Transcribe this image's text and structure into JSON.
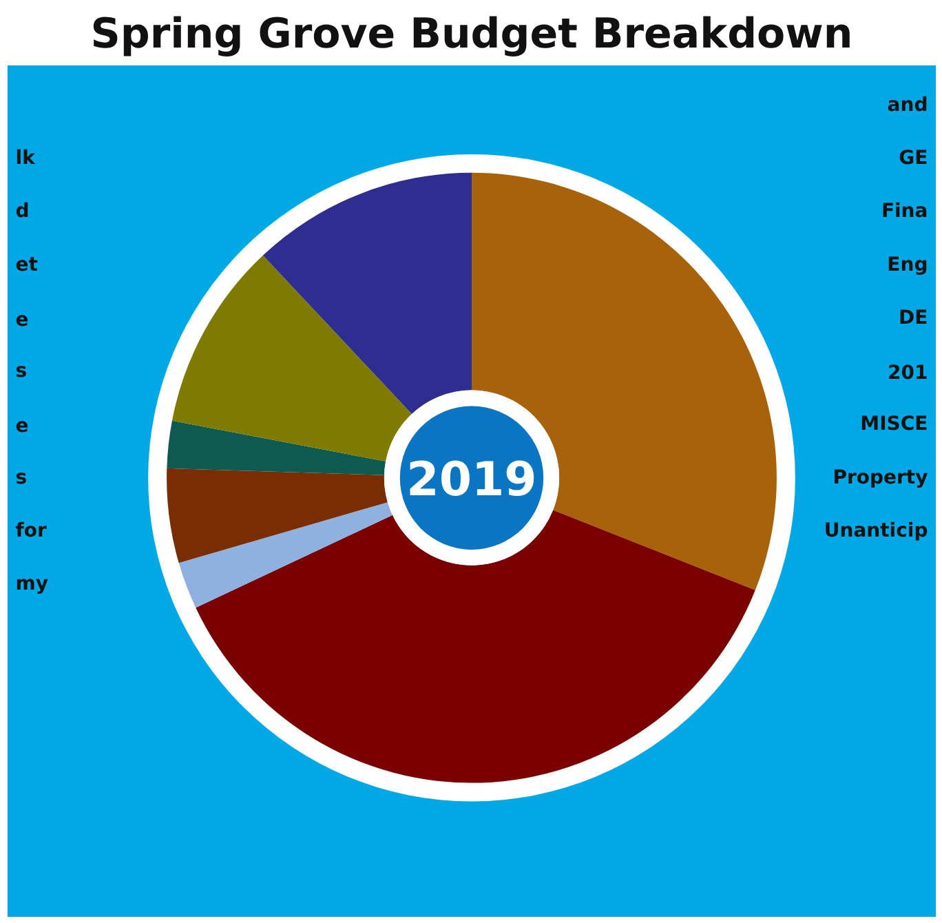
{
  "chart_data": {
    "type": "donut",
    "title": "Spring Grove Budget Breakdown",
    "subtitle": "2019",
    "categories": [
      null,
      null,
      null,
      null,
      null,
      null,
      null
    ],
    "values": [
      31,
      37,
      2.5,
      5,
      2.5,
      10,
      12
    ],
    "colors": [
      "#a8620a",
      "#7a0000",
      "#8fb1e0",
      "#7a2d00",
      "#0f5a50",
      "#7f7a00",
      "#2e2e90"
    ],
    "annotations": [
      "lk",
      "d",
      "et",
      "e",
      "s",
      "e",
      "s",
      "for",
      "my",
      "and",
      "GE",
      "Fina",
      "Eng",
      "DE",
      "201",
      "MISCE",
      "Property",
      "Unanticip"
    ]
  }
}
